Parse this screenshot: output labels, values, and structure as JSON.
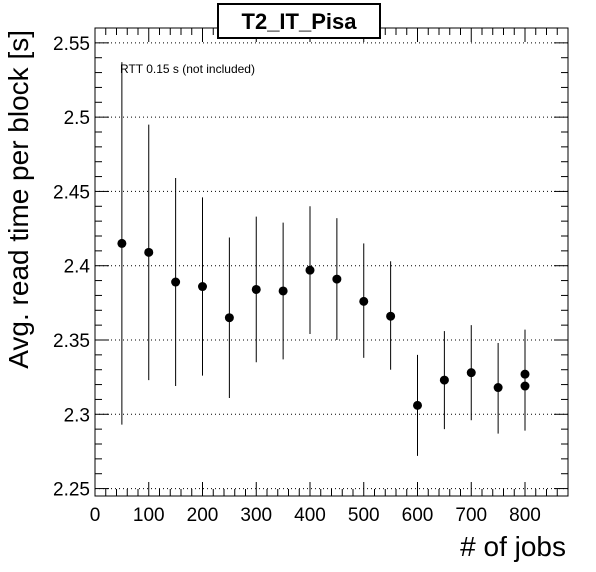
{
  "chart_data": {
    "type": "scatter",
    "title": "T2_IT_Pisa",
    "xlabel": "# of jobs",
    "ylabel": "Avg. read time per block [s]",
    "annotation": "RTT 0.15 s (not included)",
    "xlim": [
      0,
      880
    ],
    "ylim": [
      2.245,
      2.56
    ],
    "x_ticks": [
      0,
      100,
      200,
      300,
      400,
      500,
      600,
      700,
      800
    ],
    "y_ticks": [
      2.25,
      2.3,
      2.35,
      2.4,
      2.45,
      2.5,
      2.55
    ],
    "x_tick_labels": [
      "0",
      "100",
      "200",
      "300",
      "400",
      "500",
      "600",
      "700",
      "800"
    ],
    "y_tick_labels": [
      "2.25",
      "2.3",
      "2.35",
      "2.4",
      "2.45",
      "2.5",
      "2.55"
    ],
    "grid": {
      "x": false,
      "y": true,
      "style": "dotted"
    },
    "color": "#000000",
    "series": [
      {
        "points": [
          {
            "x": 50,
            "y": 2.415,
            "ylow": 2.293,
            "yhigh": 2.537
          },
          {
            "x": 100,
            "y": 2.409,
            "ylow": 2.323,
            "yhigh": 2.495
          },
          {
            "x": 150,
            "y": 2.389,
            "ylow": 2.319,
            "yhigh": 2.459
          },
          {
            "x": 200,
            "y": 2.386,
            "ylow": 2.326,
            "yhigh": 2.446
          },
          {
            "x": 250,
            "y": 2.365,
            "ylow": 2.311,
            "yhigh": 2.419
          },
          {
            "x": 300,
            "y": 2.384,
            "ylow": 2.335,
            "yhigh": 2.433
          },
          {
            "x": 350,
            "y": 2.383,
            "ylow": 2.337,
            "yhigh": 2.429
          },
          {
            "x": 400,
            "y": 2.397,
            "ylow": 2.354,
            "yhigh": 2.44
          },
          {
            "x": 450,
            "y": 2.391,
            "ylow": 2.35,
            "yhigh": 2.432
          },
          {
            "x": 500,
            "y": 2.376,
            "ylow": 2.338,
            "yhigh": 2.415
          },
          {
            "x": 550,
            "y": 2.366,
            "ylow": 2.33,
            "yhigh": 2.403
          },
          {
            "x": 600,
            "y": 2.306,
            "ylow": 2.272,
            "yhigh": 2.34
          },
          {
            "x": 650,
            "y": 2.323,
            "ylow": 2.29,
            "yhigh": 2.356
          },
          {
            "x": 700,
            "y": 2.328,
            "ylow": 2.296,
            "yhigh": 2.36
          },
          {
            "x": 750,
            "y": 2.318,
            "ylow": 2.287,
            "yhigh": 2.348
          },
          {
            "x": 800,
            "y": 2.327,
            "ylow": 2.295,
            "yhigh": 2.357
          },
          {
            "x": 800,
            "y": 2.319,
            "ylow": 2.289,
            "yhigh": 2.349
          }
        ]
      }
    ]
  }
}
